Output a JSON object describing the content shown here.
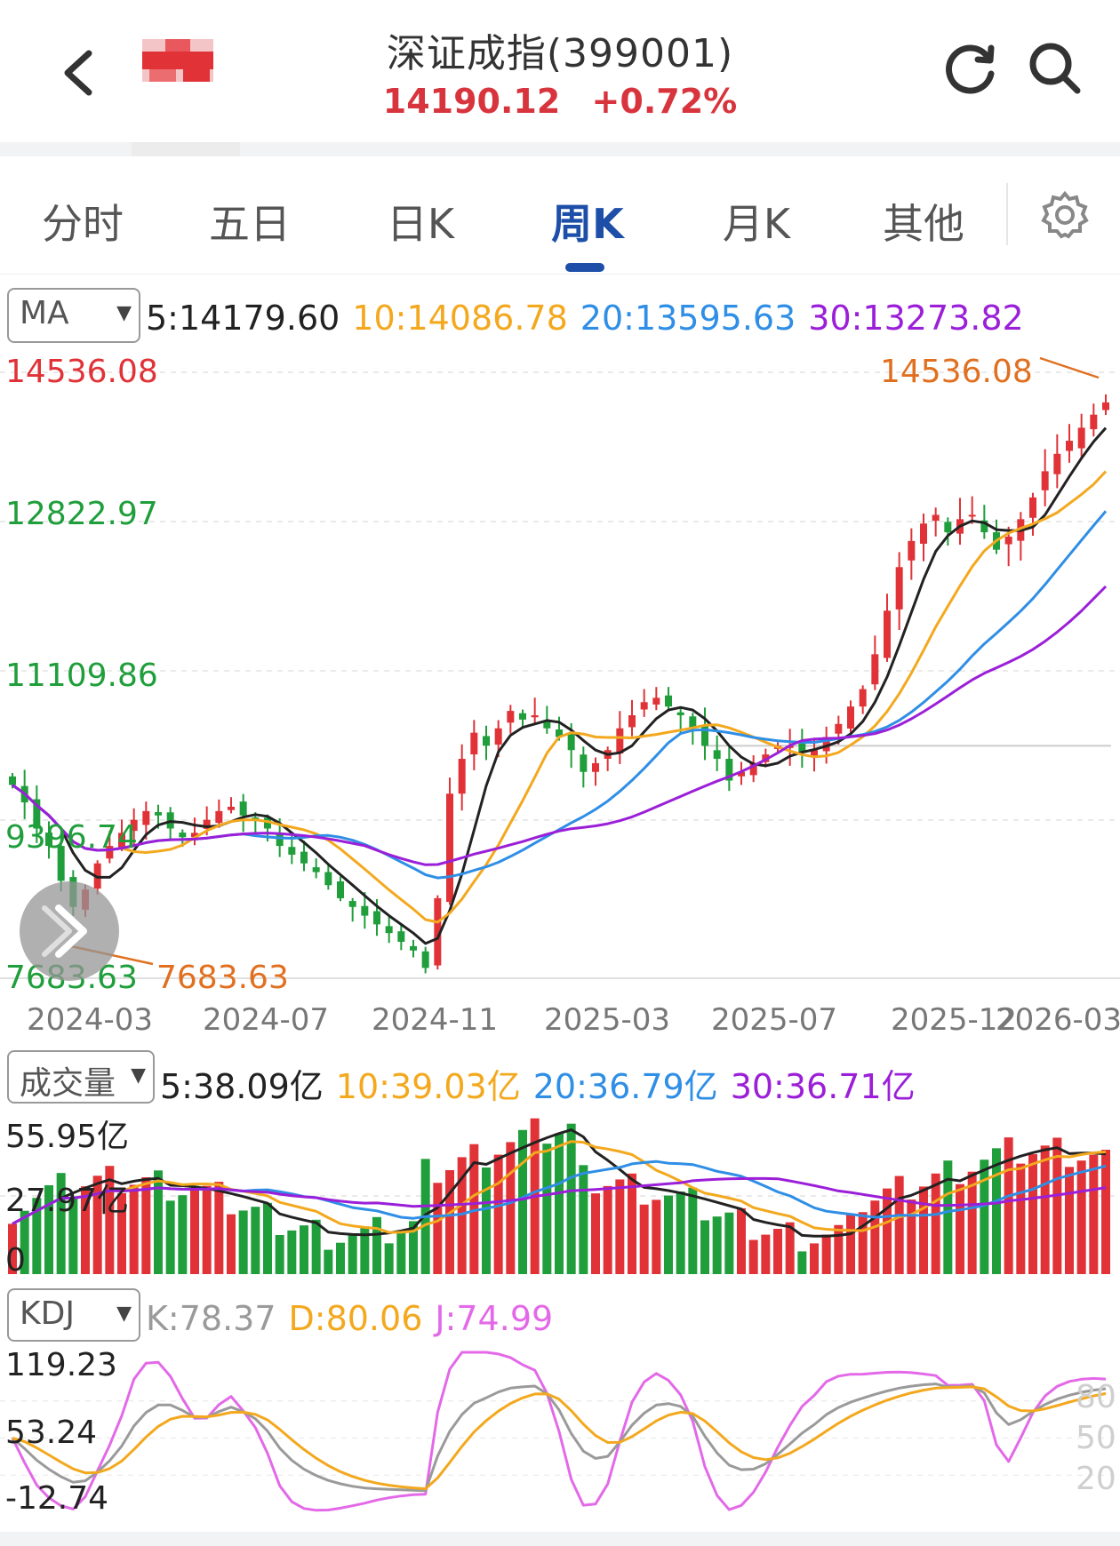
{
  "header": {
    "title": "深证成指(399001)",
    "price": "14190.12",
    "change": "+0.72%"
  },
  "tabs": [
    {
      "label": "分时"
    },
    {
      "label": "五日"
    },
    {
      "label": "日K"
    },
    {
      "label": "周K"
    },
    {
      "label": "月K"
    },
    {
      "label": "其他"
    }
  ],
  "active_tab": "周K",
  "ma_panel": {
    "selector": "MA",
    "legend": {
      "ma5": "5:14179.60",
      "ma10": "10:14086.78",
      "ma20": "20:13595.63",
      "ma30": "30:13273.82"
    },
    "y_labels": {
      "top": "14536.08",
      "upper": "12822.97",
      "mid": "11109.86",
      "lower": "9396.74",
      "bottom": "7683.63"
    },
    "high_annotation": "14536.08",
    "low_annotation": "7683.63"
  },
  "x_labels": [
    "2024-03",
    "2024-07",
    "2024-11",
    "2025-03",
    "2025-07",
    "2025-12",
    "2026-03"
  ],
  "volume_panel": {
    "selector": "成交量",
    "legend": {
      "ma5": "5:38.09亿",
      "ma10": "10:39.03亿",
      "ma20": "20:36.79亿",
      "ma30": "30:36.71亿"
    },
    "y_labels": {
      "top": "55.95亿",
      "mid": "27.97亿",
      "bottom": "0"
    }
  },
  "kdj_panel": {
    "selector": "KDJ",
    "legend": {
      "k": "K:78.37",
      "d": "D:80.06",
      "j": "J:74.99"
    },
    "y_labels": {
      "top": "119.23",
      "mid": "53.24",
      "bottom": "-12.74"
    },
    "right_labels": [
      "80",
      "50",
      "20"
    ]
  },
  "colors": {
    "up": "#e03237",
    "down": "#1f9e3b",
    "ma5": "#222222",
    "ma10": "#f3a81e",
    "ma20": "#2f8ee5",
    "ma30": "#9b1fd8",
    "kdj_k": "#9a9a9a",
    "kdj_d": "#f3a81e",
    "kdj_j": "#e369e8",
    "accent": "#1d4fa8",
    "annotation": "#e07020"
  },
  "chart_data": {
    "type": "candlestick",
    "period": "weekly",
    "y_range": [
      7683.63,
      14536.08
    ],
    "close_series_approx": [
      9800,
      9600,
      9300,
      9100,
      8700,
      8400,
      8600,
      8900,
      9100,
      9250,
      9400,
      9500,
      9450,
      9300,
      9200,
      9250,
      9400,
      9500,
      9550,
      9450,
      9400,
      9300,
      9100,
      9000,
      8900,
      8800,
      8650,
      8500,
      8400,
      8300,
      8200,
      8100,
      8000,
      7900,
      7700,
      8500,
      9700,
      10100,
      10400,
      10250,
      10450,
      10650,
      10550,
      10600,
      10450,
      10350,
      10200,
      9950,
      10050,
      10200,
      10450,
      10600,
      10750,
      10800,
      10700,
      10600,
      10450,
      10250,
      10100,
      9850,
      9950,
      10050,
      10150,
      10250,
      10250,
      10180,
      10200,
      10350,
      10500,
      10700,
      10900,
      11300,
      11800,
      12300,
      12600,
      12800,
      12900,
      12700,
      12850,
      12900,
      12700,
      12500,
      12650,
      12850,
      13100,
      13400,
      13600,
      13750,
      13900,
      14050,
      14190.12
    ],
    "volume_range": [
      0,
      55.95
    ],
    "kdj_range": [
      -12.74,
      119.23
    ]
  }
}
